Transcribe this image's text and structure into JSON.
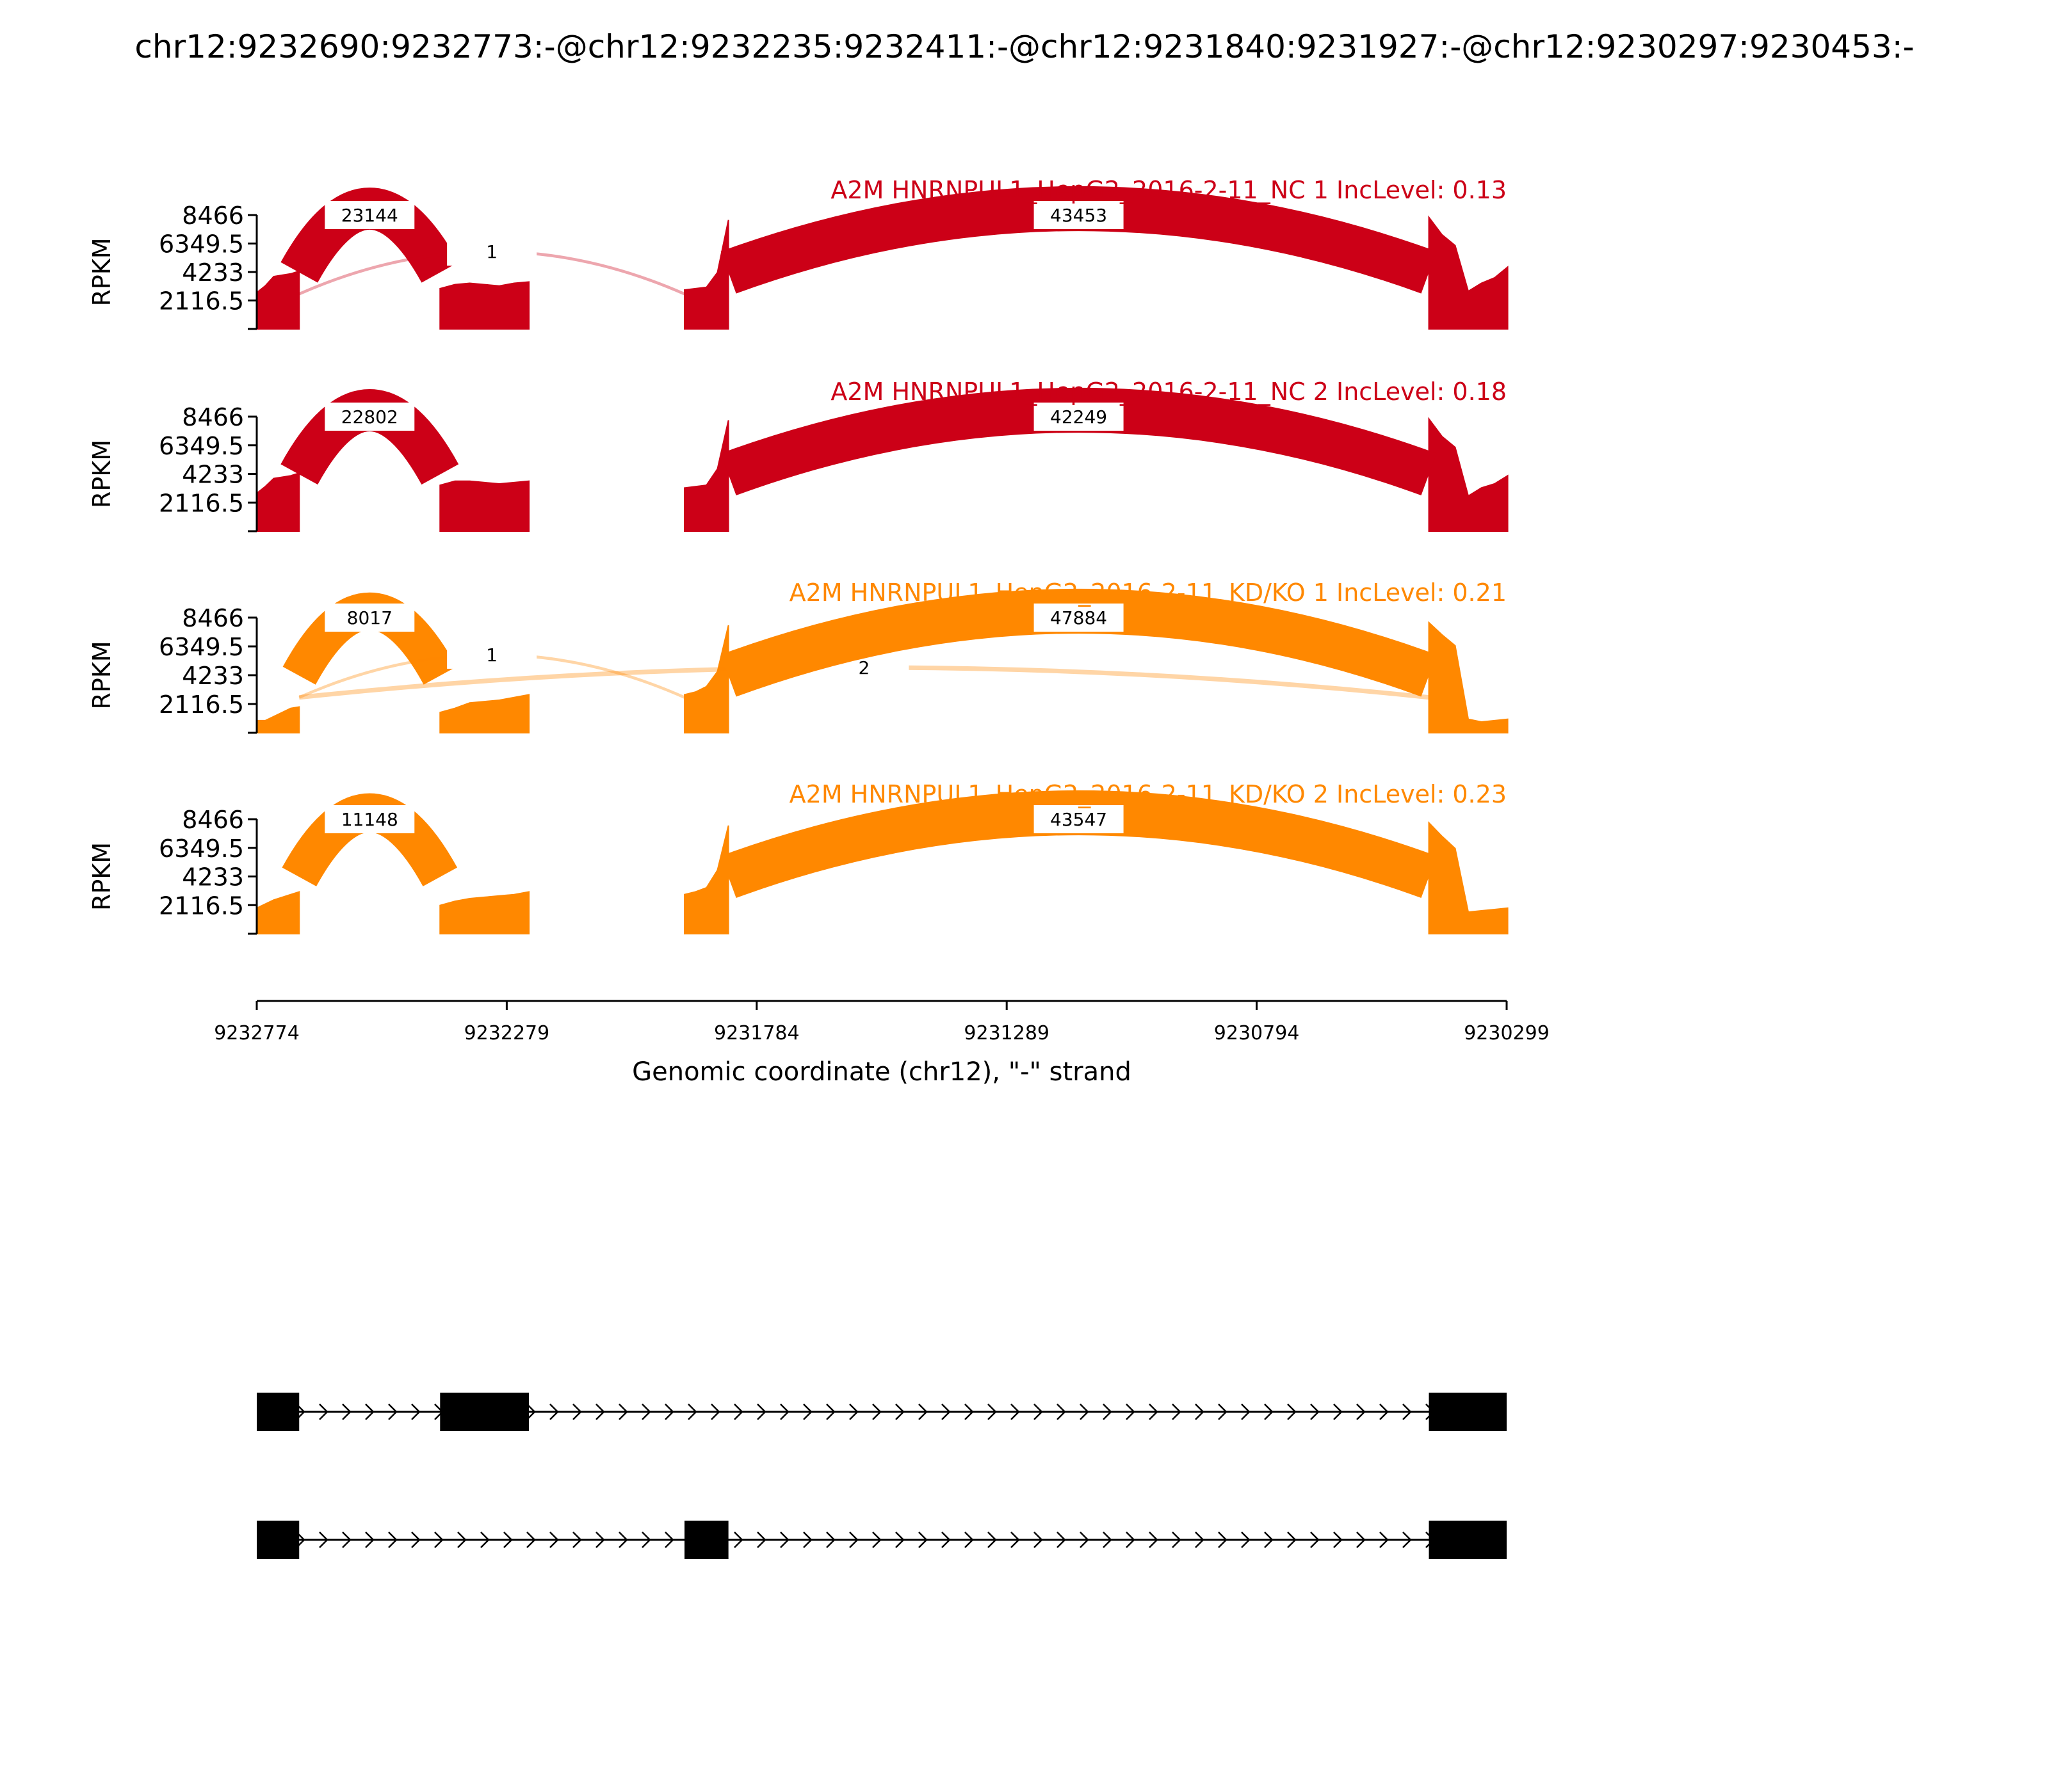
{
  "page_title": "chr12:9232690:9232773:-@chr12:9232235:9232411:-@chr12:9231840:9231927:-@chr12:9230297:9230453:-",
  "colors": {
    "NC": "#cc0017",
    "KD": "#ff8800",
    "axis": "#000000",
    "gene_model": "#000000"
  },
  "chart_data": {
    "type": "area",
    "subtype": "sashimi",
    "title": "chr12:9232690:9232773:-@chr12:9232235:9232411:-@chr12:9231840:9231927:-@chr12:9230297:9230453:-",
    "ylabel": "RPKM",
    "xlabel": "Genomic coordinate (chr12), \"-\" strand",
    "x_ticks": [
      9232774,
      9232279,
      9231784,
      9231289,
      9230794,
      9230299
    ],
    "x_range": [
      9232774,
      9230299
    ],
    "y_ticks": [
      "8466",
      "6349.5",
      "4233",
      "2116.5"
    ],
    "y_range": [
      0,
      8466
    ],
    "grid": false,
    "tracks": [
      {
        "title": "A2M HNRNPUL1_HepG2_2016-2-11_NC 1 IncLevel: 0.13",
        "color": "#cc0017",
        "coverage": [
          {
            "start": 9232774,
            "end": 9232690,
            "values": [
              2700,
              3200,
              3900,
              4000,
              4100,
              4300
            ]
          },
          {
            "start": 9232411,
            "end": 9232235,
            "values": [
              3000,
              3300,
              3400,
              3300,
              3200,
              3400,
              3500
            ]
          },
          {
            "start": 9231927,
            "end": 9231840,
            "values": [
              2900,
              3000,
              3100,
              4200,
              8100
            ]
          },
          {
            "start": 9230453,
            "end": 9230297,
            "values": [
              8300,
              7000,
              6200,
              2800,
              3400,
              3800,
              4600
            ]
          }
        ],
        "junctions": [
          {
            "from": 9232690,
            "to": 9232411,
            "count": "23144",
            "side": "above"
          },
          {
            "from": 9232690,
            "to": 9231927,
            "count": "1",
            "side": "above"
          },
          {
            "from": 9231840,
            "to": 9230453,
            "count": "43453",
            "side": "above"
          }
        ]
      },
      {
        "title": "A2M HNRNPUL1_HepG2_2016-2-11_NC 2 IncLevel: 0.18",
        "color": "#cc0017",
        "coverage": [
          {
            "start": 9232774,
            "end": 9232690,
            "values": [
              2800,
              3300,
              3900,
              4000,
              4100,
              4300
            ]
          },
          {
            "start": 9232411,
            "end": 9232235,
            "values": [
              3400,
              3700,
              3700,
              3600,
              3500,
              3600,
              3700
            ]
          },
          {
            "start": 9231927,
            "end": 9231840,
            "values": [
              3200,
              3300,
              3400,
              4600,
              8200
            ]
          },
          {
            "start": 9230453,
            "end": 9230297,
            "values": [
              8300,
              7000,
              6200,
              2600,
              3200,
              3500,
              4100
            ]
          }
        ],
        "junctions": [
          {
            "from": 9232690,
            "to": 9232411,
            "count": "22802",
            "side": "above"
          },
          {
            "from": 9231840,
            "to": 9230453,
            "count": "42249",
            "side": "above"
          }
        ]
      },
      {
        "title": "A2M HNRNPUL1_HepG2_2016-2-11_KD/KO 1 IncLevel: 0.21",
        "color": "#ff8800",
        "coverage": [
          {
            "start": 9232774,
            "end": 9232690,
            "values": [
              900,
              900,
              1200,
              1500,
              1800,
              1900
            ]
          },
          {
            "start": 9232411,
            "end": 9232235,
            "values": [
              1500,
              1800,
              2200,
              2300,
              2400,
              2600,
              2800
            ]
          },
          {
            "start": 9231927,
            "end": 9231840,
            "values": [
              2800,
              3000,
              3400,
              4500,
              7900
            ]
          },
          {
            "start": 9230453,
            "end": 9230297,
            "values": [
              8100,
              7200,
              6400,
              1000,
              800,
              900,
              1000
            ]
          }
        ],
        "junctions": [
          {
            "from": 9232690,
            "to": 9232411,
            "count": "8017",
            "side": "above"
          },
          {
            "from": 9232690,
            "to": 9231927,
            "count": "1",
            "side": "above"
          },
          {
            "from": 9232690,
            "to": 9230453,
            "count": "2",
            "side": "above"
          },
          {
            "from": 9231840,
            "to": 9230453,
            "count": "47884",
            "side": "above"
          }
        ]
      },
      {
        "title": "A2M HNRNPUL1_HepG2_2016-2-11_KD/KO 2 IncLevel: 0.23",
        "color": "#ff8800",
        "coverage": [
          {
            "start": 9232774,
            "end": 9232690,
            "values": [
              1900,
              2200,
              2500,
              2700,
              2900,
              3100
            ]
          },
          {
            "start": 9232411,
            "end": 9232235,
            "values": [
              2100,
              2400,
              2600,
              2700,
              2800,
              2900,
              3100
            ]
          },
          {
            "start": 9231927,
            "end": 9231840,
            "values": [
              2900,
              3100,
              3400,
              4700,
              8000
            ]
          },
          {
            "start": 9230453,
            "end": 9230297,
            "values": [
              8200,
              7200,
              6300,
              1600,
              1700,
              1800,
              1900
            ]
          }
        ],
        "junctions": [
          {
            "from": 9232690,
            "to": 9232411,
            "count": "11148",
            "side": "above"
          },
          {
            "from": 9231840,
            "to": 9230453,
            "count": "43547",
            "side": "above"
          }
        ]
      }
    ],
    "gene_models": [
      {
        "exons": [
          [
            9232774,
            9232690
          ],
          [
            9232411,
            9232235
          ],
          [
            9230453,
            9230299
          ]
        ]
      },
      {
        "exons": [
          [
            9232774,
            9232690
          ],
          [
            9231927,
            9231840
          ],
          [
            9230453,
            9230299
          ]
        ]
      }
    ]
  }
}
